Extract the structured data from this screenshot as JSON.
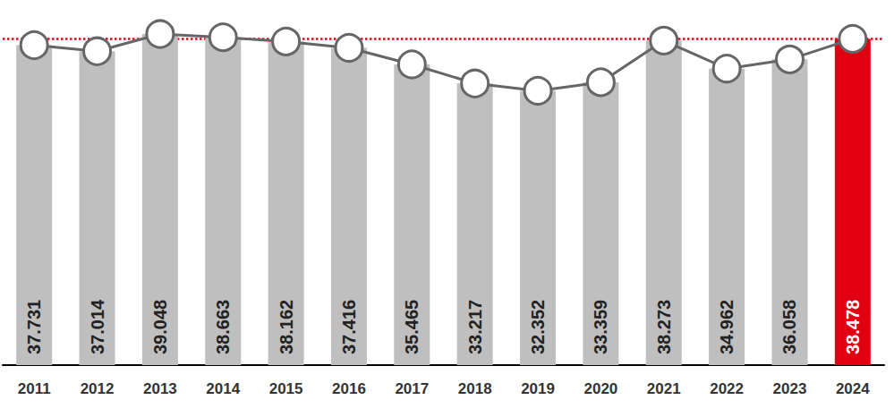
{
  "chart_data": {
    "type": "bar",
    "categories": [
      "2011",
      "2012",
      "2013",
      "2014",
      "2015",
      "2016",
      "2017",
      "2018",
      "2019",
      "2020",
      "2021",
      "2022",
      "2023",
      "2024"
    ],
    "values": [
      37.731,
      37.014,
      39.048,
      38.663,
      38.162,
      37.416,
      35.465,
      33.217,
      32.352,
      33.359,
      38.273,
      34.962,
      36.058,
      38.478
    ],
    "colors": [
      "#bfbfbf",
      "#bfbfbf",
      "#bfbfbf",
      "#bfbfbf",
      "#bfbfbf",
      "#bfbfbf",
      "#bfbfbf",
      "#bfbfbf",
      "#bfbfbf",
      "#bfbfbf",
      "#bfbfbf",
      "#bfbfbf",
      "#bfbfbf",
      "#e00012"
    ],
    "reference_line": 38.478,
    "ylim": [
      0,
      40
    ],
    "yticks": [
      0,
      40
    ],
    "grid": false,
    "tick_labels": "x",
    "data_labels": true,
    "marker": "circle",
    "line_style": "solid"
  }
}
